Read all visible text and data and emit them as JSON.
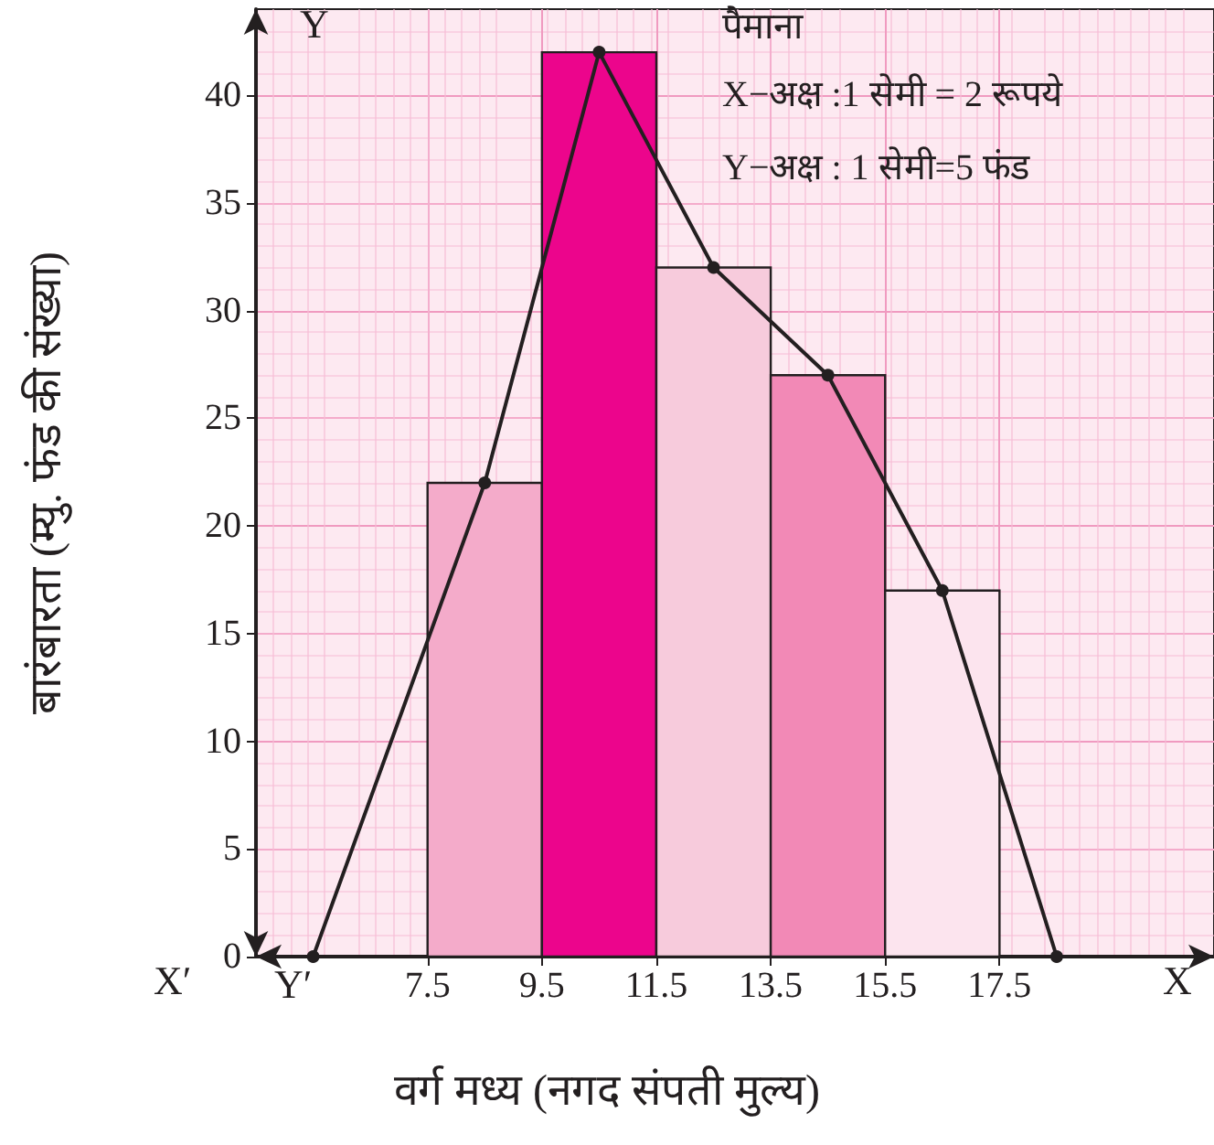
{
  "chart_data": {
    "type": "histogram",
    "xlabel": "वर्ग मध्य (नगद संपती मुल्य)",
    "ylabel": "बारंबारता (म्यु. फंड की संख्या)",
    "bins": [
      7.5,
      9.5,
      11.5,
      13.5,
      15.5,
      17.5
    ],
    "values": [
      22,
      42,
      32,
      27,
      17
    ],
    "colors": [
      "#f4abca",
      "#ec058c",
      "#f7cbdc",
      "#f289b6",
      "#fce4ee"
    ],
    "series": [
      {
        "type": "line",
        "x": [
          5.5,
          8.5,
          10.5,
          12.5,
          14.5,
          16.5,
          18.5
        ],
        "values": [
          0,
          22,
          42,
          32,
          27,
          17,
          0
        ],
        "color": "#231f20",
        "marker": "circle",
        "line_style": "solid"
      }
    ],
    "xlim": [
      4.5,
      21.25
    ],
    "xticks": [
      7.5,
      9.5,
      11.5,
      13.5,
      15.5,
      17.5
    ],
    "ylim": [
      0,
      44
    ],
    "yticks": [
      0,
      5,
      10,
      15,
      20,
      25,
      30,
      35,
      40
    ],
    "grid": true,
    "annotations": [
      "पैमाना",
      "X−अक्ष :1 सेमी = 2 रूपये",
      "Y−अक्ष : 1 सेमी=5 फंड",
      "X",
      "X′",
      "Y",
      "Y′"
    ]
  }
}
